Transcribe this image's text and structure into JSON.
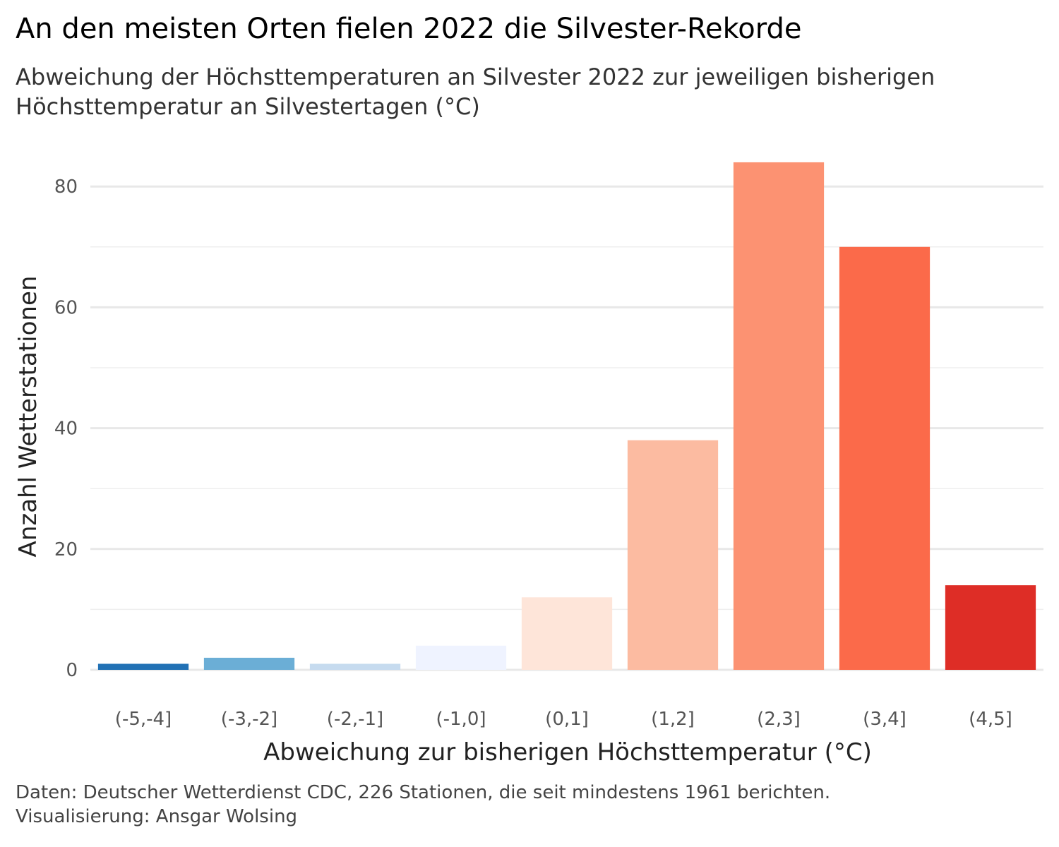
{
  "header": {
    "title": "An den meisten Orten fielen 2022 die Silvester-Rekorde",
    "subtitle": "Abweichung der Höchsttemperaturen an Silvester 2022 zur jeweiligen bisherigen Höchsttemperatur an Silvestertagen (°C)"
  },
  "caption": {
    "line1": "Daten: Deutscher Wetterdienst CDC, 226 Stationen, die seit mindestens 1961 berichten.",
    "line2": "Visualisierung: Ansgar Wolsing"
  },
  "chart_data": {
    "type": "bar",
    "title": "An den meisten Orten fielen 2022 die Silvester-Rekorde",
    "subtitle": "Abweichung der Höchsttemperaturen an Silvester 2022 zur jeweiligen bisherigen Höchsttemperatur an Silvestertagen (°C)",
    "xlabel": "Abweichung zur bisherigen Höchsttemperatur (°C)",
    "ylabel": "Anzahl Wetterstationen",
    "categories": [
      "(-5,-4]",
      "(-3,-2]",
      "(-2,-1]",
      "(-1,0]",
      "(0,1]",
      "(1,2]",
      "(2,3]",
      "(3,4]",
      "(4,5]"
    ],
    "values": [
      1,
      2,
      1,
      4,
      12,
      38,
      84,
      70,
      14
    ],
    "colors": [
      "#2171b5",
      "#6baed6",
      "#c6dbef",
      "#eff3ff",
      "#fee5d9",
      "#fcbba1",
      "#fc9272",
      "#fb6a4a",
      "#de2d26"
    ],
    "ylim": [
      0,
      84
    ],
    "yticks": [
      0,
      20,
      40,
      60,
      80
    ],
    "grid": true,
    "legend": "none"
  }
}
